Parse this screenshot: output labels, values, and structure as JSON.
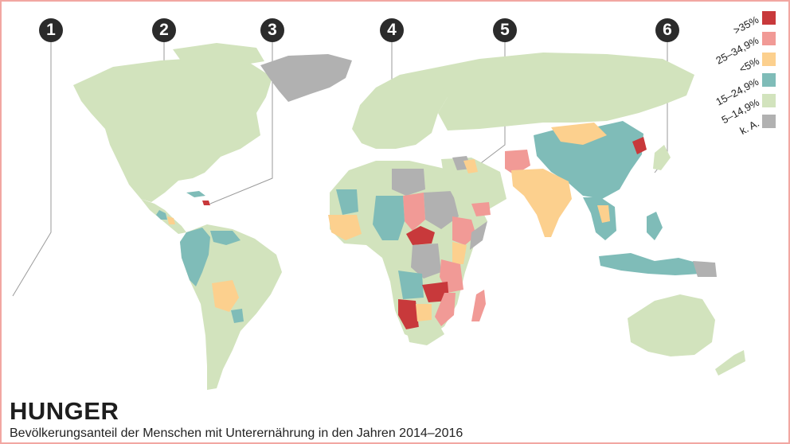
{
  "title": "HUNGER",
  "subtitle": "Bevölkerungsanteil der Menschen mit Unterernährung in den Jahren 2014–2016",
  "markers": [
    {
      "label": "1"
    },
    {
      "label": "2"
    },
    {
      "label": "3"
    },
    {
      "label": "4"
    },
    {
      "label": "5"
    },
    {
      "label": "6"
    }
  ],
  "legend": [
    {
      "label": ">35%",
      "color": "#c8393b"
    },
    {
      "label": "25–34,9%",
      "color": "#f19a96"
    },
    {
      "label": "<5%",
      "color": "#fcd08e"
    },
    {
      "label": "15–24,9%",
      "color": "#7fbcb8"
    },
    {
      "label": "5–14,9%",
      "color": "#d2e3bd"
    },
    {
      "label": "k. A.",
      "color": "#b1b1b1"
    }
  ],
  "colors": {
    "frame_border": "#f2a7a2",
    "badge": "#2b2b2b"
  }
}
